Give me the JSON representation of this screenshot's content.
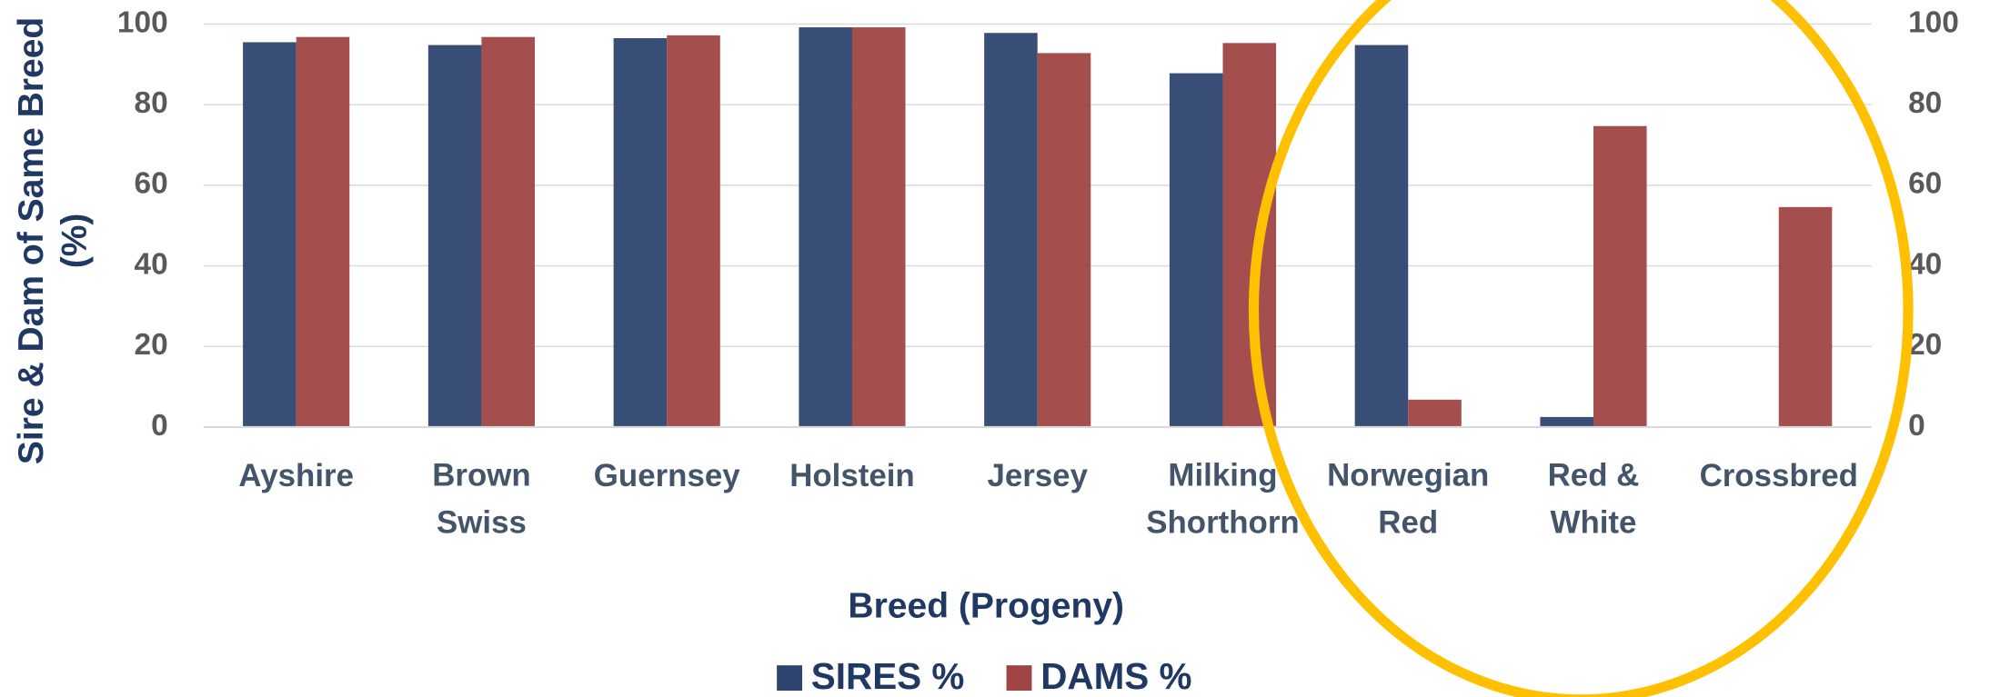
{
  "chart_data": {
    "type": "bar",
    "y_axis_label": "Sire & Dam of Same Breed (%)",
    "x_axis_label": "Breed (Progeny)",
    "categories": [
      "Ayshire",
      "Brown Swiss",
      "Guernsey",
      "Holstein",
      "Jersey",
      "Milking Shorthorn",
      "Norwegian Red",
      "Red & White",
      "Crossbred"
    ],
    "series": [
      {
        "name": "SIRES %",
        "color": "#2e4470",
        "values": [
          95.5,
          94.8,
          96.5,
          99.2,
          97.8,
          87.8,
          94.8,
          2.5,
          0
        ]
      },
      {
        "name": "DAMS %",
        "color": "#a04545",
        "values": [
          96.8,
          96.8,
          97.2,
          99.2,
          92.8,
          95.3,
          6.8,
          74.7,
          54.6
        ]
      }
    ],
    "ylim": [
      0,
      100
    ],
    "yticks": [
      0,
      20,
      40,
      60,
      80,
      100
    ],
    "y2lim": [
      0,
      100
    ],
    "y2ticks": [
      0,
      20,
      40,
      60,
      80,
      100
    ],
    "grid": true,
    "legend": "bottom"
  }
}
